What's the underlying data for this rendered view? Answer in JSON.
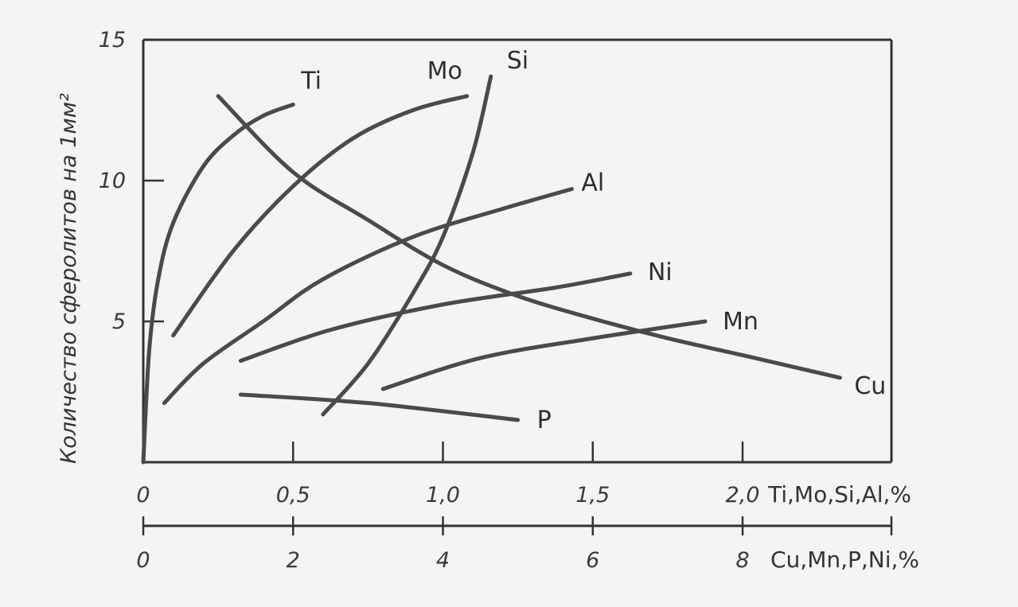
{
  "chart_data": {
    "type": "line",
    "ylabel": "Количество сферолитов на 1мм²",
    "ylim": [
      0,
      15
    ],
    "y_ticks": [
      "15",
      "10",
      "5"
    ],
    "x_axes": [
      {
        "label": "Ti,Mo,Si,Al,%",
        "xlim": [
          0,
          2.5
        ],
        "ticks": [
          {
            "value": 0,
            "text": "0"
          },
          {
            "value": 0.5,
            "text": "0,5"
          },
          {
            "value": 1.0,
            "text": "1,0"
          },
          {
            "value": 1.5,
            "text": "1,5"
          },
          {
            "value": 2.0,
            "text": "2,0"
          }
        ]
      },
      {
        "label": "Cu,Mn,P,Ni,%",
        "xlim": [
          0,
          10
        ],
        "ticks": [
          {
            "value": 0,
            "text": "0"
          },
          {
            "value": 2,
            "text": "2"
          },
          {
            "value": 4,
            "text": "4"
          },
          {
            "value": 6,
            "text": "6"
          },
          {
            "value": 8,
            "text": "8"
          }
        ]
      }
    ],
    "series": [
      {
        "name": "Ti",
        "axis": 0,
        "points": [
          [
            0.0,
            0.0
          ],
          [
            0.02,
            4.0
          ],
          [
            0.05,
            6.5
          ],
          [
            0.1,
            8.5
          ],
          [
            0.2,
            10.5
          ],
          [
            0.3,
            11.6
          ],
          [
            0.4,
            12.3
          ],
          [
            0.5,
            12.7
          ]
        ]
      },
      {
        "name": "Mo",
        "axis": 0,
        "points": [
          [
            0.1,
            4.5
          ],
          [
            0.3,
            7.5
          ],
          [
            0.5,
            9.8
          ],
          [
            0.7,
            11.5
          ],
          [
            0.9,
            12.5
          ],
          [
            1.08,
            13.0
          ]
        ]
      },
      {
        "name": "Si",
        "axis": 0,
        "points": [
          [
            0.6,
            1.7
          ],
          [
            0.75,
            3.5
          ],
          [
            0.9,
            6.0
          ],
          [
            1.0,
            8.0
          ],
          [
            1.1,
            11.0
          ],
          [
            1.16,
            13.7
          ]
        ]
      },
      {
        "name": "Al",
        "axis": 0,
        "points": [
          [
            0.07,
            2.1
          ],
          [
            0.2,
            3.5
          ],
          [
            0.4,
            5.0
          ],
          [
            0.6,
            6.5
          ],
          [
            0.9,
            8.0
          ],
          [
            1.2,
            9.0
          ],
          [
            1.43,
            9.7
          ]
        ]
      },
      {
        "name": "Ni",
        "axis": 1,
        "points": [
          [
            1.3,
            3.6
          ],
          [
            2.5,
            4.7
          ],
          [
            4.0,
            5.6
          ],
          [
            5.5,
            6.2
          ],
          [
            6.5,
            6.7
          ]
        ]
      },
      {
        "name": "Mn",
        "axis": 1,
        "points": [
          [
            3.2,
            2.6
          ],
          [
            4.5,
            3.7
          ],
          [
            6.0,
            4.4
          ],
          [
            7.5,
            5.0
          ]
        ]
      },
      {
        "name": "P",
        "axis": 1,
        "points": [
          [
            1.3,
            2.4
          ],
          [
            3.0,
            2.1
          ],
          [
            5.0,
            1.5
          ]
        ]
      },
      {
        "name": "Cu",
        "axis": 1,
        "points": [
          [
            1.0,
            13.0
          ],
          [
            2.0,
            10.3
          ],
          [
            3.0,
            8.6
          ],
          [
            4.0,
            7.0
          ],
          [
            5.0,
            5.9
          ],
          [
            6.0,
            5.1
          ],
          [
            7.0,
            4.4
          ],
          [
            8.0,
            3.8
          ],
          [
            9.3,
            3.0
          ]
        ]
      }
    ]
  }
}
